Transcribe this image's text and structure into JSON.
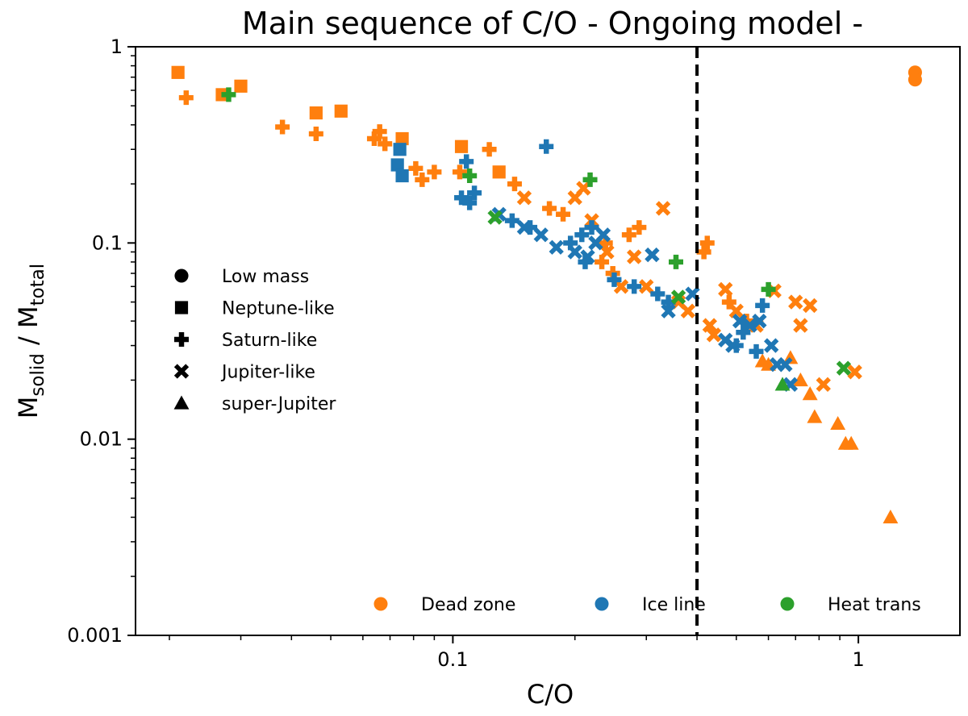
{
  "chart_data": {
    "type": "scatter",
    "title": "Main sequence of C/O  - Ongoing model -",
    "xlabel": "C/O",
    "ylabel": {
      "main": "M",
      "sub1": "solid",
      "sep": " / M",
      "sub2": "total"
    },
    "xscale": "log",
    "yscale": "log",
    "xlim": [
      0.0165,
      1.78
    ],
    "ylim": [
      0.001,
      1
    ],
    "xticks": [
      {
        "value": 0.1,
        "label": "0.1"
      },
      {
        "value": 1,
        "label": "1"
      }
    ],
    "yticks": [
      {
        "value": 1,
        "label": "1"
      },
      {
        "value": 0.1,
        "label": "0.1"
      },
      {
        "value": 0.01,
        "label": "0.01"
      },
      {
        "value": 0.001,
        "label": "0.001"
      }
    ],
    "vline": {
      "x": 0.4,
      "style": "dashed",
      "color": "#000000"
    },
    "colors": {
      "Dead zone": "#ff7f0e",
      "Ice line": "#1f77b4",
      "Heat trans": "#2ca02c"
    },
    "marker_legend": {
      "placement": "middle-left",
      "entries": [
        {
          "marker": "circle",
          "label": "Low mass"
        },
        {
          "marker": "square",
          "label": "Neptune-like"
        },
        {
          "marker": "plus",
          "label": "Saturn-like"
        },
        {
          "marker": "x",
          "label": "Jupiter-like"
        },
        {
          "marker": "triangle",
          "label": "super-Jupiter"
        }
      ]
    },
    "color_legend": {
      "placement": "bottom-right",
      "entries": [
        {
          "label": "Dead zone",
          "color": "#ff7f0e"
        },
        {
          "label": "Ice line",
          "color": "#1f77b4"
        },
        {
          "label": "Heat trans",
          "color": "#2ca02c"
        }
      ]
    },
    "series": [
      {
        "name": "Dead zone",
        "color": "#ff7f0e",
        "points": [
          {
            "x": 1.38,
            "y": 0.74,
            "m": "circle"
          },
          {
            "x": 1.38,
            "y": 0.68,
            "m": "circle"
          },
          {
            "x": 0.021,
            "y": 0.74,
            "m": "square"
          },
          {
            "x": 0.027,
            "y": 0.57,
            "m": "square"
          },
          {
            "x": 0.03,
            "y": 0.63,
            "m": "square"
          },
          {
            "x": 0.046,
            "y": 0.46,
            "m": "square"
          },
          {
            "x": 0.053,
            "y": 0.47,
            "m": "square"
          },
          {
            "x": 0.075,
            "y": 0.34,
            "m": "square"
          },
          {
            "x": 0.105,
            "y": 0.31,
            "m": "square"
          },
          {
            "x": 0.13,
            "y": 0.23,
            "m": "square"
          },
          {
            "x": 0.022,
            "y": 0.55,
            "m": "plus"
          },
          {
            "x": 0.038,
            "y": 0.39,
            "m": "plus"
          },
          {
            "x": 0.046,
            "y": 0.36,
            "m": "plus"
          },
          {
            "x": 0.064,
            "y": 0.34,
            "m": "plus"
          },
          {
            "x": 0.066,
            "y": 0.37,
            "m": "plus"
          },
          {
            "x": 0.068,
            "y": 0.32,
            "m": "plus"
          },
          {
            "x": 0.081,
            "y": 0.24,
            "m": "plus"
          },
          {
            "x": 0.084,
            "y": 0.21,
            "m": "plus"
          },
          {
            "x": 0.09,
            "y": 0.23,
            "m": "plus"
          },
          {
            "x": 0.104,
            "y": 0.23,
            "m": "plus"
          },
          {
            "x": 0.123,
            "y": 0.3,
            "m": "plus"
          },
          {
            "x": 0.142,
            "y": 0.2,
            "m": "plus"
          },
          {
            "x": 0.173,
            "y": 0.15,
            "m": "plus"
          },
          {
            "x": 0.187,
            "y": 0.14,
            "m": "plus"
          },
          {
            "x": 0.233,
            "y": 0.08,
            "m": "plus"
          },
          {
            "x": 0.238,
            "y": 0.1,
            "m": "plus"
          },
          {
            "x": 0.248,
            "y": 0.07,
            "m": "plus"
          },
          {
            "x": 0.272,
            "y": 0.11,
            "m": "plus"
          },
          {
            "x": 0.288,
            "y": 0.12,
            "m": "plus"
          },
          {
            "x": 0.416,
            "y": 0.09,
            "m": "plus"
          },
          {
            "x": 0.424,
            "y": 0.1,
            "m": "plus"
          },
          {
            "x": 0.48,
            "y": 0.05,
            "m": "plus"
          },
          {
            "x": 0.53,
            "y": 0.04,
            "m": "plus"
          },
          {
            "x": 0.15,
            "y": 0.17,
            "m": "x"
          },
          {
            "x": 0.2,
            "y": 0.17,
            "m": "x"
          },
          {
            "x": 0.21,
            "y": 0.19,
            "m": "x"
          },
          {
            "x": 0.22,
            "y": 0.13,
            "m": "x"
          },
          {
            "x": 0.24,
            "y": 0.09,
            "m": "x"
          },
          {
            "x": 0.26,
            "y": 0.06,
            "m": "x"
          },
          {
            "x": 0.28,
            "y": 0.085,
            "m": "x"
          },
          {
            "x": 0.3,
            "y": 0.06,
            "m": "x"
          },
          {
            "x": 0.33,
            "y": 0.15,
            "m": "x"
          },
          {
            "x": 0.36,
            "y": 0.05,
            "m": "x"
          },
          {
            "x": 0.38,
            "y": 0.045,
            "m": "x"
          },
          {
            "x": 0.43,
            "y": 0.038,
            "m": "x"
          },
          {
            "x": 0.44,
            "y": 0.034,
            "m": "x"
          },
          {
            "x": 0.47,
            "y": 0.058,
            "m": "x"
          },
          {
            "x": 0.5,
            "y": 0.045,
            "m": "x"
          },
          {
            "x": 0.56,
            "y": 0.038,
            "m": "x"
          },
          {
            "x": 0.62,
            "y": 0.057,
            "m": "x"
          },
          {
            "x": 0.7,
            "y": 0.05,
            "m": "x"
          },
          {
            "x": 0.72,
            "y": 0.038,
            "m": "x"
          },
          {
            "x": 0.76,
            "y": 0.048,
            "m": "x"
          },
          {
            "x": 0.82,
            "y": 0.019,
            "m": "x"
          },
          {
            "x": 0.98,
            "y": 0.022,
            "m": "x"
          },
          {
            "x": 0.58,
            "y": 0.025,
            "m": "triangle"
          },
          {
            "x": 0.6,
            "y": 0.024,
            "m": "triangle"
          },
          {
            "x": 0.68,
            "y": 0.026,
            "m": "triangle"
          },
          {
            "x": 0.72,
            "y": 0.02,
            "m": "triangle"
          },
          {
            "x": 0.76,
            "y": 0.017,
            "m": "triangle"
          },
          {
            "x": 0.78,
            "y": 0.013,
            "m": "triangle"
          },
          {
            "x": 0.89,
            "y": 0.012,
            "m": "triangle"
          },
          {
            "x": 0.93,
            "y": 0.0095,
            "m": "triangle"
          },
          {
            "x": 0.96,
            "y": 0.0095,
            "m": "triangle"
          },
          {
            "x": 1.2,
            "y": 0.004,
            "m": "triangle"
          }
        ]
      },
      {
        "name": "Ice line",
        "color": "#1f77b4",
        "points": [
          {
            "x": 0.074,
            "y": 0.3,
            "m": "square"
          },
          {
            "x": 0.073,
            "y": 0.25,
            "m": "square"
          },
          {
            "x": 0.075,
            "y": 0.22,
            "m": "square"
          },
          {
            "x": 0.105,
            "y": 0.17,
            "m": "plus"
          },
          {
            "x": 0.11,
            "y": 0.16,
            "m": "plus"
          },
          {
            "x": 0.108,
            "y": 0.26,
            "m": "plus"
          },
          {
            "x": 0.113,
            "y": 0.18,
            "m": "plus"
          },
          {
            "x": 0.17,
            "y": 0.31,
            "m": "plus"
          },
          {
            "x": 0.14,
            "y": 0.13,
            "m": "plus"
          },
          {
            "x": 0.155,
            "y": 0.12,
            "m": "plus"
          },
          {
            "x": 0.195,
            "y": 0.1,
            "m": "plus"
          },
          {
            "x": 0.208,
            "y": 0.11,
            "m": "plus"
          },
          {
            "x": 0.212,
            "y": 0.08,
            "m": "plus"
          },
          {
            "x": 0.22,
            "y": 0.12,
            "m": "plus"
          },
          {
            "x": 0.25,
            "y": 0.065,
            "m": "plus"
          },
          {
            "x": 0.28,
            "y": 0.06,
            "m": "plus"
          },
          {
            "x": 0.32,
            "y": 0.055,
            "m": "plus"
          },
          {
            "x": 0.34,
            "y": 0.05,
            "m": "plus"
          },
          {
            "x": 0.5,
            "y": 0.03,
            "m": "plus"
          },
          {
            "x": 0.52,
            "y": 0.035,
            "m": "plus"
          },
          {
            "x": 0.56,
            "y": 0.028,
            "m": "plus"
          },
          {
            "x": 0.58,
            "y": 0.048,
            "m": "plus"
          },
          {
            "x": 0.13,
            "y": 0.14,
            "m": "x"
          },
          {
            "x": 0.15,
            "y": 0.12,
            "m": "x"
          },
          {
            "x": 0.165,
            "y": 0.11,
            "m": "x"
          },
          {
            "x": 0.18,
            "y": 0.095,
            "m": "x"
          },
          {
            "x": 0.2,
            "y": 0.09,
            "m": "x"
          },
          {
            "x": 0.215,
            "y": 0.085,
            "m": "x"
          },
          {
            "x": 0.225,
            "y": 0.1,
            "m": "x"
          },
          {
            "x": 0.235,
            "y": 0.11,
            "m": "x"
          },
          {
            "x": 0.31,
            "y": 0.087,
            "m": "x"
          },
          {
            "x": 0.34,
            "y": 0.045,
            "m": "x"
          },
          {
            "x": 0.39,
            "y": 0.055,
            "m": "x"
          },
          {
            "x": 0.47,
            "y": 0.032,
            "m": "x"
          },
          {
            "x": 0.49,
            "y": 0.03,
            "m": "x"
          },
          {
            "x": 0.51,
            "y": 0.04,
            "m": "x"
          },
          {
            "x": 0.54,
            "y": 0.038,
            "m": "x"
          },
          {
            "x": 0.57,
            "y": 0.04,
            "m": "x"
          },
          {
            "x": 0.61,
            "y": 0.03,
            "m": "x"
          },
          {
            "x": 0.63,
            "y": 0.024,
            "m": "x"
          },
          {
            "x": 0.66,
            "y": 0.024,
            "m": "x"
          },
          {
            "x": 0.68,
            "y": 0.019,
            "m": "x"
          }
        ]
      },
      {
        "name": "Heat trans",
        "color": "#2ca02c",
        "points": [
          {
            "x": 0.028,
            "y": 0.57,
            "m": "plus"
          },
          {
            "x": 0.11,
            "y": 0.22,
            "m": "plus"
          },
          {
            "x": 0.218,
            "y": 0.21,
            "m": "plus"
          },
          {
            "x": 0.355,
            "y": 0.08,
            "m": "plus"
          },
          {
            "x": 0.6,
            "y": 0.058,
            "m": "plus"
          },
          {
            "x": 0.127,
            "y": 0.135,
            "m": "x"
          },
          {
            "x": 0.36,
            "y": 0.053,
            "m": "x"
          },
          {
            "x": 0.92,
            "y": 0.023,
            "m": "x"
          },
          {
            "x": 0.65,
            "y": 0.019,
            "m": "triangle"
          }
        ]
      }
    ]
  }
}
